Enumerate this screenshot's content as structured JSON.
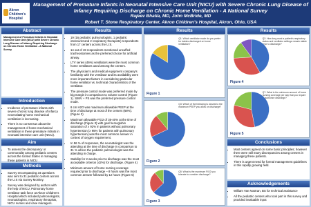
{
  "header": {
    "logo": "Akron Children's Hospital",
    "title": "Management of Premature Infants in Neonatal Intensive Care Unit (NICU) with Severe Chronic Lung Disease of Infancy Requiring Discharge on Chronic Home Ventilation - A National Survey",
    "authors": "Rajeev Bhatia, MD, John McBride, MD",
    "affiliation": "Robert T. Stone Respiratory Center, Akron Children's Hospital, Akron, Ohio, USA"
  },
  "sections": {
    "abstract": {
      "heading": "Abstract",
      "text": "Management of Premature Infants in Neonatal Intensive Care Unit (NICU) with Severe Chronic Lung Disease of Infancy Requiring Discharge on Chronic Home Ventilation - A National Survey"
    },
    "introduction": {
      "heading": "Introduction",
      "bullets": [
        "Incidence of premature infants with severe chronic lung disease of infancy necessitating home mechanical ventilation is increasing.",
        "There is no consensus about the management of home mechanical ventilation in these premature infants in neonatal intensive care unit (NICU)."
      ]
    },
    "aim": {
      "heading": "Aim",
      "bullets": [
        "To assess the discrepancy or commonality among pediatric centers across the United States in managing these patients in NICU"
      ]
    },
    "methods": {
      "heading": "Methods",
      "bullets": [
        "Survey encompassing 34 questions was sent to 31 pediatric centers across the U.S via Survey Monkey.",
        "Survey was designed by authors with the help of NICU, Pulmonary home ventilator task force at Akron Children's Hospital which included pulmonologists, neonatologists, respiratory therapists, NICU nurses and case managers."
      ]
    },
    "results": {
      "headings": [
        "Results",
        "Results",
        "Results"
      ],
      "bullets": [
        "19 (16 pediatric pulmonologists, 1 pediatric intensivist and 2 respiratory therapists) respondents from 17 centers across the U.S.",
        "14 out of 19 respondents mentioned uncuffed tracheostomies as the preferred choice for artificial airway.",
        "LTV series (46%) ventilators were the most common home ventilators used among the centers.",
        "The physician's and medical equipment company's familiarity with the ventilator and its availability were more important factors in considering particular home ventilator vs. technical characteristics of the ventilator.",
        "The pressure control mode was preferred mode by big margin in comparison to volume control (Figure 1). SIMV + PS was the preferred pressure control mode.",
        "8 cm H2O was maximum allowable PEEP at the time of discharge at most of the centers (68%). (Figure 2)",
        "Maximum allowable FiO2 of 35-40% at the time of discharge (Figure 3) with goal hemoglobin saturation of ≥ 92% in patients without pulmonary hypertension (≥ 95% for patients with pulmonary hypertension) was the most common answer in context of oxygen requirement.",
        "In 56 % of responses, the neonatologist was the attending at the time of discharge in comparison to 31 % where the pediatric pulmonologist was the attending in charge.",
        "Stability for 2 weeks prior to discharge was the most acceptable criterion (42%) for discharge. (Figure 4)",
        "Minimum amount of home nursing coverage required prior to discharge – 8 hours was the most common answer followed by 12 hours (Figure 5)"
      ]
    },
    "conclusions": {
      "heading": "Conclusions",
      "bullets": [
        "Most centers agreed on some basic principles; however there were still many discrepancies among centers in managing these patients.",
        "There is urgent need for formal management guidelines in this rapidly growing field."
      ]
    },
    "acknowledgements": {
      "heading": "Acknowledgements",
      "bullets": [
        "William Van Nostran, BS for technical assistance",
        "All the pediatric centers who took part in this survey and provided invaluable input"
      ]
    }
  },
  "figures": [
    {
      "label": "Figure 1",
      "question": "Q1: Which ventilator mode do you prefer for babies discharged on home ventilation?",
      "values": [
        84,
        16
      ],
      "colors": [
        "#3b6fc4",
        "#e8c23a"
      ]
    },
    {
      "label": "Figure 2",
      "question": "Q3: Which of the following is closest to the maximum PEEP you allow on discharge?",
      "values": [
        68,
        21,
        11
      ],
      "colors": [
        "#3b6fc4",
        "#d9534f",
        "#8bc34a"
      ]
    },
    {
      "label": "Figure 3",
      "question": "Q5: What is the maximum FiO2 you tolerate to consider discharge?",
      "values": [
        63,
        26,
        11
      ],
      "colors": [
        "#3b6fc4",
        "#d9534f",
        "#8bc34a"
      ]
    },
    {
      "label": "Figure 4",
      "question": "Q2: How long must a patient's respiratory status and ventilator settings remain stable prior to discharge?",
      "values": [
        42,
        32,
        16,
        10
      ],
      "colors": [
        "#3b6fc4",
        "#d9534f",
        "#8bc34a",
        "#7e57c2"
      ]
    },
    {
      "label": "Figure 5",
      "question": "Q7: What is the minimum amount of home nursing coverage per day that you require to authorize discharge?",
      "values": [
        47,
        32,
        21
      ],
      "colors": [
        "#3b6fc4",
        "#d9534f",
        "#8bc34a"
      ]
    }
  ]
}
